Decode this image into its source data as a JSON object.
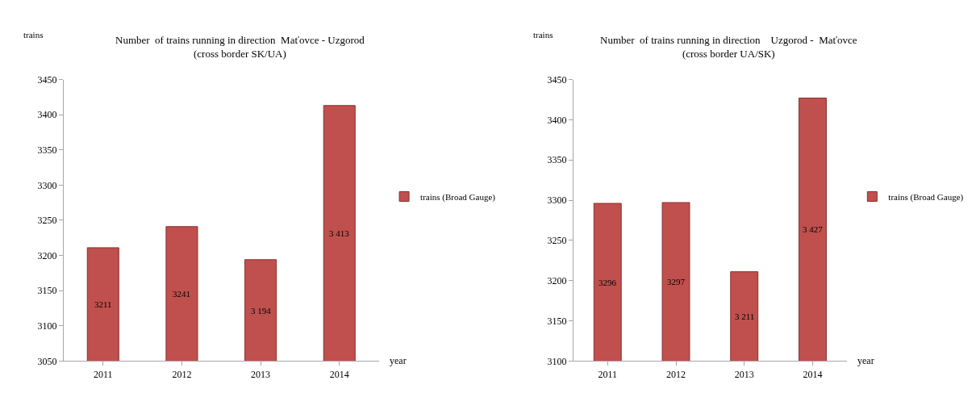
{
  "chart_data": [
    {
      "type": "bar",
      "title": "Number  of trains running in direction  Maťovce - Uzgorod\n(cross border SK/UA)",
      "ylabel": "trains",
      "xlabel": "year",
      "categories": [
        "2011",
        "2012",
        "2013",
        "2014"
      ],
      "series": [
        {
          "name": "trains (Broad Gauge)",
          "color": "#c0504d",
          "values": [
            3211,
            3241,
            3194,
            3413
          ],
          "value_labels": [
            "3211",
            "3241",
            "3 194",
            "3 413"
          ]
        }
      ],
      "ylim": [
        3050,
        3450
      ],
      "yticks": [
        3050,
        3100,
        3150,
        3200,
        3250,
        3300,
        3350,
        3400,
        3450
      ],
      "grid": false,
      "legend": "right"
    },
    {
      "type": "bar",
      "title": "Number  of trains running in direction    Uzgorod -  Maťovce\n(cross border UA/SK)",
      "ylabel": "trains",
      "xlabel": "year",
      "categories": [
        "2011",
        "2012",
        "2013",
        "2014"
      ],
      "series": [
        {
          "name": "trains (Broad Gauge)",
          "color": "#c0504d",
          "values": [
            3296,
            3297,
            3211,
            3427
          ],
          "value_labels": [
            "3296",
            "3297",
            "3 211",
            "3 427"
          ]
        }
      ],
      "ylim": [
        3100,
        3450
      ],
      "yticks": [
        3100,
        3150,
        3200,
        3250,
        3300,
        3350,
        3400,
        3450
      ],
      "grid": false,
      "legend": "right"
    }
  ]
}
